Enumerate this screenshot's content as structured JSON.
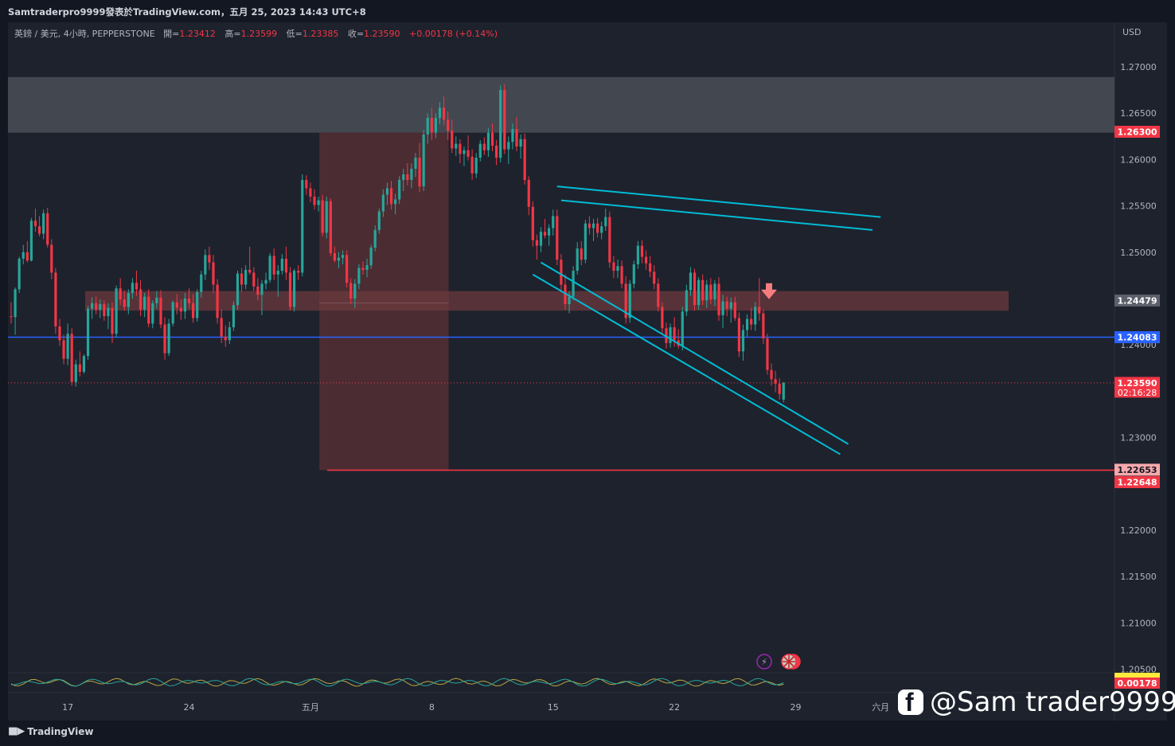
{
  "header": {
    "published_by": "Samtraderpro9999發表於TradingView.com，五月 25, 2023 14:43 UTC+8",
    "symbol": "英鎊 / 美元, 4小時, PEPPERSTONE",
    "open_label": "開=",
    "open_value": "1.23412",
    "high_label": "高=",
    "high_value": "1.23599",
    "low_label": "低=",
    "low_value": "1.23385",
    "close_label": "收=",
    "close_value": "1.23590",
    "change": "+0.00178 (+0.14%)",
    "currency": "USD"
  },
  "footer": {
    "brand": "TradingView",
    "watermark": "@Sam trader9999"
  },
  "colors": {
    "background": "#131722",
    "up": "#26a69a",
    "down": "#f23645",
    "channel": "#00bcd4",
    "support_blue": "#2962ff",
    "target_red": "#f23645",
    "supply_zone": "#4a4d57",
    "demand_zone": "#6b3a3e",
    "short_box": "#5c3036"
  },
  "chart_data": {
    "type": "candlestick",
    "symbol": "英鎊 / 美元",
    "timeframe": "4小時",
    "ylim": [
      1.2045,
      1.2728
    ],
    "y_ticks": [
      "1.27000",
      "1.26500",
      "1.26000",
      "1.25500",
      "1.25000",
      "1.24000",
      "1.23000",
      "1.22000",
      "1.21500",
      "1.21000",
      "1.20500"
    ],
    "x_ticks": [
      {
        "label": "17",
        "bar": 14
      },
      {
        "label": "24",
        "bar": 44
      },
      {
        "label": "五月",
        "bar": 74
      },
      {
        "label": "8",
        "bar": 104
      },
      {
        "label": "15",
        "bar": 134
      },
      {
        "label": "22",
        "bar": 164
      },
      {
        "label": "29",
        "bar": 194
      },
      {
        "label": "六月",
        "bar": 215
      }
    ],
    "price_labels": [
      {
        "text": "1.26300",
        "value": 1.263,
        "style": "red"
      },
      {
        "text": "1.24479",
        "value": 1.24479,
        "style": "grey"
      },
      {
        "text": "1.24083",
        "value": 1.24083,
        "style": "blue"
      },
      {
        "text": "1.23590",
        "value": 1.2359,
        "style": "red",
        "sub": "02:16:28"
      },
      {
        "text": "1.22653",
        "value": 1.22653,
        "style": "pink"
      },
      {
        "text": "1.22648",
        "value": 1.22648,
        "style": "red"
      }
    ],
    "indicator_value": "0.00178",
    "levels": {
      "supply_zone": [
        1.2629,
        1.2689
      ],
      "demand_zone": [
        1.2437,
        1.2458
      ],
      "support_line": 1.24083,
      "current_price": 1.2359,
      "target_line": 1.22648
    },
    "short_position": {
      "start_bar": 77,
      "end_bar": 107,
      "stop": 1.2629,
      "entry": 1.24479,
      "target": 1.22648
    },
    "channel_lines": [
      {
        "b1": 135,
        "p1": 1.2571,
        "b2": 215,
        "p2": 1.2538
      },
      {
        "b1": 136,
        "p1": 1.2556,
        "b2": 213,
        "p2": 1.2524
      },
      {
        "b1": 131,
        "p1": 1.2489,
        "b2": 207,
        "p2": 1.2293
      },
      {
        "b1": 129,
        "p1": 1.2476,
        "b2": 205,
        "p2": 1.2282
      }
    ],
    "ohlc": [
      [
        1.2431,
        1.2446,
        1.2423,
        1.243
      ],
      [
        1.243,
        1.2462,
        1.2411,
        1.246
      ],
      [
        1.246,
        1.2495,
        1.2456,
        1.2493
      ],
      [
        1.2493,
        1.2508,
        1.2487,
        1.25
      ],
      [
        1.25,
        1.2512,
        1.2489,
        1.2491
      ],
      [
        1.2491,
        1.2537,
        1.249,
        1.2534
      ],
      [
        1.2534,
        1.2547,
        1.2522,
        1.2528
      ],
      [
        1.2528,
        1.2539,
        1.2517,
        1.252
      ],
      [
        1.252,
        1.2546,
        1.2514,
        1.2542
      ],
      [
        1.2542,
        1.2548,
        1.2505,
        1.2508
      ],
      [
        1.2508,
        1.2514,
        1.2471,
        1.2478
      ],
      [
        1.2478,
        1.2483,
        1.2412,
        1.242
      ],
      [
        1.242,
        1.2428,
        1.2399,
        1.2405
      ],
      [
        1.2405,
        1.2411,
        1.2379,
        1.2385
      ],
      [
        1.2385,
        1.2423,
        1.2378,
        1.2412
      ],
      [
        1.2412,
        1.2418,
        1.2356,
        1.236
      ],
      [
        1.236,
        1.2384,
        1.2355,
        1.2379
      ],
      [
        1.2379,
        1.2393,
        1.2366,
        1.2371
      ],
      [
        1.2371,
        1.239,
        1.2369,
        1.2388
      ],
      [
        1.2388,
        1.2442,
        1.2384,
        1.2439
      ],
      [
        1.2439,
        1.2451,
        1.2428,
        1.2445
      ],
      [
        1.2445,
        1.2452,
        1.2433,
        1.2438
      ],
      [
        1.2438,
        1.2449,
        1.2429,
        1.2444
      ],
      [
        1.2444,
        1.2448,
        1.2426,
        1.2431
      ],
      [
        1.2431,
        1.2445,
        1.2417,
        1.244
      ],
      [
        1.244,
        1.2446,
        1.2402,
        1.2412
      ],
      [
        1.2412,
        1.2464,
        1.2408,
        1.2461
      ],
      [
        1.2461,
        1.2472,
        1.2443,
        1.2449
      ],
      [
        1.2449,
        1.2459,
        1.2437,
        1.2441
      ],
      [
        1.2441,
        1.246,
        1.2433,
        1.2456
      ],
      [
        1.2456,
        1.2472,
        1.245,
        1.2467
      ],
      [
        1.2467,
        1.248,
        1.2453,
        1.246
      ],
      [
        1.246,
        1.247,
        1.2431,
        1.2438
      ],
      [
        1.2438,
        1.2456,
        1.243,
        1.2452
      ],
      [
        1.2452,
        1.246,
        1.2419,
        1.2423
      ],
      [
        1.2423,
        1.2448,
        1.2418,
        1.2445
      ],
      [
        1.2445,
        1.2458,
        1.2439,
        1.2451
      ],
      [
        1.2451,
        1.2459,
        1.2418,
        1.2422
      ],
      [
        1.2422,
        1.243,
        1.2384,
        1.2391
      ],
      [
        1.2391,
        1.2428,
        1.2388,
        1.2423
      ],
      [
        1.2423,
        1.2448,
        1.242,
        1.2446
      ],
      [
        1.2446,
        1.2455,
        1.2433,
        1.244
      ],
      [
        1.244,
        1.2449,
        1.2427,
        1.2436
      ],
      [
        1.2436,
        1.2456,
        1.2428,
        1.245
      ],
      [
        1.245,
        1.2461,
        1.2439,
        1.2445
      ],
      [
        1.2445,
        1.2455,
        1.2424,
        1.2429
      ],
      [
        1.2429,
        1.246,
        1.2425,
        1.2457
      ],
      [
        1.2457,
        1.248,
        1.2451,
        1.2476
      ],
      [
        1.2476,
        1.2503,
        1.247,
        1.2497
      ],
      [
        1.2497,
        1.2506,
        1.2481,
        1.2489
      ],
      [
        1.2489,
        1.2497,
        1.2456,
        1.2465
      ],
      [
        1.2465,
        1.2471,
        1.2423,
        1.2429
      ],
      [
        1.2429,
        1.2438,
        1.2402,
        1.2409
      ],
      [
        1.2409,
        1.2421,
        1.2398,
        1.2405
      ],
      [
        1.2405,
        1.2425,
        1.2401,
        1.2419
      ],
      [
        1.2419,
        1.2447,
        1.2415,
        1.2443
      ],
      [
        1.2443,
        1.248,
        1.2438,
        1.2477
      ],
      [
        1.2477,
        1.2483,
        1.2457,
        1.2465
      ],
      [
        1.2465,
        1.2486,
        1.246,
        1.2481
      ],
      [
        1.2481,
        1.2506,
        1.2476,
        1.2478
      ],
      [
        1.2478,
        1.2484,
        1.2458,
        1.2463
      ],
      [
        1.2463,
        1.2472,
        1.2448,
        1.2454
      ],
      [
        1.2454,
        1.247,
        1.2432,
        1.2466
      ],
      [
        1.2466,
        1.2478,
        1.246,
        1.247
      ],
      [
        1.247,
        1.2499,
        1.2467,
        1.2496
      ],
      [
        1.2496,
        1.2504,
        1.247,
        1.2476
      ],
      [
        1.2476,
        1.2486,
        1.2452,
        1.248
      ],
      [
        1.248,
        1.2498,
        1.2476,
        1.2493
      ],
      [
        1.2493,
        1.2506,
        1.247,
        1.2478
      ],
      [
        1.2478,
        1.2484,
        1.2437,
        1.2441
      ],
      [
        1.2441,
        1.2482,
        1.2436,
        1.248
      ],
      [
        1.248,
        1.2486,
        1.247,
        1.2478
      ],
      [
        1.2478,
        1.2584,
        1.2474,
        1.2578
      ],
      [
        1.2578,
        1.2583,
        1.2562,
        1.2569
      ],
      [
        1.2569,
        1.2575,
        1.2554,
        1.256
      ],
      [
        1.256,
        1.2568,
        1.2546,
        1.2551
      ],
      [
        1.2551,
        1.256,
        1.2544,
        1.2556
      ],
      [
        1.2556,
        1.2562,
        1.2517,
        1.2521
      ],
      [
        1.2521,
        1.256,
        1.2515,
        1.2555
      ],
      [
        1.2555,
        1.2558,
        1.2496,
        1.2499
      ],
      [
        1.2499,
        1.2506,
        1.2489,
        1.2491
      ],
      [
        1.2491,
        1.25,
        1.2483,
        1.2494
      ],
      [
        1.2494,
        1.2502,
        1.2487,
        1.2497
      ],
      [
        1.2497,
        1.2502,
        1.2462,
        1.2467
      ],
      [
        1.2467,
        1.2472,
        1.2444,
        1.245
      ],
      [
        1.245,
        1.2471,
        1.244,
        1.2466
      ],
      [
        1.2466,
        1.2487,
        1.246,
        1.2483
      ],
      [
        1.2483,
        1.249,
        1.2476,
        1.2481
      ],
      [
        1.2481,
        1.2493,
        1.2473,
        1.2486
      ],
      [
        1.2486,
        1.2508,
        1.2482,
        1.2505
      ],
      [
        1.2505,
        1.2529,
        1.2501,
        1.2524
      ],
      [
        1.2524,
        1.2547,
        1.252,
        1.2544
      ],
      [
        1.2544,
        1.2568,
        1.2538,
        1.2562
      ],
      [
        1.2562,
        1.2575,
        1.2551,
        1.2569
      ],
      [
        1.2569,
        1.2577,
        1.2546,
        1.2552
      ],
      [
        1.2552,
        1.2563,
        1.2541,
        1.2557
      ],
      [
        1.2557,
        1.2582,
        1.2552,
        1.2578
      ],
      [
        1.2578,
        1.259,
        1.2566,
        1.2584
      ],
      [
        1.2584,
        1.2596,
        1.2572,
        1.2578
      ],
      [
        1.2578,
        1.2596,
        1.2569,
        1.259
      ],
      [
        1.259,
        1.2607,
        1.2581,
        1.2602
      ],
      [
        1.2602,
        1.2618,
        1.2565,
        1.2571
      ],
      [
        1.2571,
        1.2632,
        1.2566,
        1.2627
      ],
      [
        1.2627,
        1.265,
        1.2617,
        1.2645
      ],
      [
        1.2645,
        1.2656,
        1.2621,
        1.2629
      ],
      [
        1.2629,
        1.265,
        1.2623,
        1.2645
      ],
      [
        1.2645,
        1.2662,
        1.2638,
        1.2656
      ],
      [
        1.2656,
        1.2668,
        1.2637,
        1.2643
      ],
      [
        1.2643,
        1.2652,
        1.2621,
        1.2631
      ],
      [
        1.2631,
        1.2643,
        1.2607,
        1.2612
      ],
      [
        1.2612,
        1.2625,
        1.2604,
        1.2617
      ],
      [
        1.2617,
        1.2622,
        1.2596,
        1.2606
      ],
      [
        1.2606,
        1.2614,
        1.2593,
        1.261
      ],
      [
        1.261,
        1.2626,
        1.2599,
        1.2603
      ],
      [
        1.2603,
        1.2611,
        1.2578,
        1.2585
      ],
      [
        1.2585,
        1.2607,
        1.258,
        1.2602
      ],
      [
        1.2602,
        1.2621,
        1.2598,
        1.2617
      ],
      [
        1.2617,
        1.2624,
        1.2605,
        1.261
      ],
      [
        1.261,
        1.2634,
        1.2603,
        1.2629
      ],
      [
        1.2629,
        1.2639,
        1.2609,
        1.2615
      ],
      [
        1.2615,
        1.2621,
        1.2594,
        1.2602
      ],
      [
        1.2602,
        1.268,
        1.2597,
        1.2675
      ],
      [
        1.2675,
        1.2681,
        1.2606,
        1.2611
      ],
      [
        1.2611,
        1.2625,
        1.2595,
        1.2619
      ],
      [
        1.2619,
        1.2639,
        1.2611,
        1.2633
      ],
      [
        1.2633,
        1.2646,
        1.2609,
        1.2614
      ],
      [
        1.2614,
        1.2627,
        1.2601,
        1.2622
      ],
      [
        1.2622,
        1.2628,
        1.2573,
        1.2578
      ],
      [
        1.2578,
        1.2582,
        1.254,
        1.2549
      ],
      [
        1.2549,
        1.2555,
        1.2506,
        1.2513
      ],
      [
        1.2513,
        1.2519,
        1.2492,
        1.2507
      ],
      [
        1.2507,
        1.2527,
        1.25,
        1.2522
      ],
      [
        1.2522,
        1.2536,
        1.2515,
        1.2518
      ],
      [
        1.2518,
        1.253,
        1.2507,
        1.2526
      ],
      [
        1.2526,
        1.2546,
        1.2518,
        1.2539
      ],
      [
        1.2539,
        1.2546,
        1.2486,
        1.2492
      ],
      [
        1.2492,
        1.2498,
        1.2457,
        1.2465
      ],
      [
        1.2465,
        1.2476,
        1.2438,
        1.2444
      ],
      [
        1.2444,
        1.2458,
        1.2434,
        1.2452
      ],
      [
        1.2452,
        1.2485,
        1.2448,
        1.248
      ],
      [
        1.248,
        1.2511,
        1.2476,
        1.2504
      ],
      [
        1.2504,
        1.2512,
        1.2486,
        1.2492
      ],
      [
        1.2492,
        1.2535,
        1.2488,
        1.2531
      ],
      [
        1.2531,
        1.2539,
        1.2519,
        1.2526
      ],
      [
        1.2526,
        1.2536,
        1.2512,
        1.2531
      ],
      [
        1.2531,
        1.2537,
        1.2516,
        1.2521
      ],
      [
        1.2521,
        1.2533,
        1.2514,
        1.2528
      ],
      [
        1.2528,
        1.2547,
        1.2523,
        1.2538
      ],
      [
        1.2538,
        1.2544,
        1.2483,
        1.2489
      ],
      [
        1.2489,
        1.2496,
        1.2472,
        1.248
      ],
      [
        1.248,
        1.2492,
        1.2472,
        1.2485
      ],
      [
        1.2485,
        1.2491,
        1.2461,
        1.2466
      ],
      [
        1.2466,
        1.2474,
        1.2423,
        1.2429
      ],
      [
        1.2429,
        1.247,
        1.2424,
        1.2466
      ],
      [
        1.2466,
        1.2491,
        1.2461,
        1.2487
      ],
      [
        1.2487,
        1.2512,
        1.2482,
        1.2507
      ],
      [
        1.2507,
        1.2513,
        1.2488,
        1.2495
      ],
      [
        1.2495,
        1.2502,
        1.2481,
        1.2488
      ],
      [
        1.2488,
        1.2496,
        1.2473,
        1.2479
      ],
      [
        1.2479,
        1.2486,
        1.246,
        1.2466
      ],
      [
        1.2466,
        1.2472,
        1.2436,
        1.2441
      ],
      [
        1.2441,
        1.2446,
        1.2412,
        1.2418
      ],
      [
        1.2418,
        1.2424,
        1.2396,
        1.2402
      ],
      [
        1.2402,
        1.2423,
        1.2397,
        1.2419
      ],
      [
        1.2419,
        1.243,
        1.2398,
        1.2405
      ],
      [
        1.2405,
        1.2417,
        1.2396,
        1.2399
      ],
      [
        1.2399,
        1.2441,
        1.2394,
        1.2436
      ],
      [
        1.2436,
        1.2465,
        1.2431,
        1.2459
      ],
      [
        1.2459,
        1.2484,
        1.2453,
        1.2478
      ],
      [
        1.2478,
        1.2482,
        1.2437,
        1.2443
      ],
      [
        1.2443,
        1.2473,
        1.2438,
        1.247
      ],
      [
        1.247,
        1.2476,
        1.2443,
        1.2448
      ],
      [
        1.2448,
        1.247,
        1.244,
        1.2465
      ],
      [
        1.2465,
        1.2472,
        1.2444,
        1.2449
      ],
      [
        1.2449,
        1.247,
        1.2442,
        1.2466
      ],
      [
        1.2466,
        1.2473,
        1.2426,
        1.2432
      ],
      [
        1.2432,
        1.2454,
        1.2418,
        1.2447
      ],
      [
        1.2447,
        1.2452,
        1.2431,
        1.2439
      ],
      [
        1.2439,
        1.2451,
        1.2424,
        1.2446
      ],
      [
        1.2446,
        1.2452,
        1.2426,
        1.2429
      ],
      [
        1.2429,
        1.2435,
        1.2387,
        1.2393
      ],
      [
        1.2393,
        1.2422,
        1.2383,
        1.2416
      ],
      [
        1.2416,
        1.2433,
        1.2409,
        1.2428
      ],
      [
        1.2428,
        1.244,
        1.2416,
        1.2422
      ],
      [
        1.2422,
        1.2446,
        1.2415,
        1.2441
      ],
      [
        1.2441,
        1.2472,
        1.2426,
        1.2434
      ],
      [
        1.2434,
        1.2438,
        1.2401,
        1.2407
      ],
      [
        1.2407,
        1.2412,
        1.2368,
        1.2373
      ],
      [
        1.2373,
        1.238,
        1.2356,
        1.2363
      ],
      [
        1.2363,
        1.2372,
        1.2349,
        1.2358
      ],
      [
        1.2358,
        1.2364,
        1.2341,
        1.2347
      ],
      [
        1.2341,
        1.236,
        1.2338,
        1.2359
      ]
    ]
  }
}
